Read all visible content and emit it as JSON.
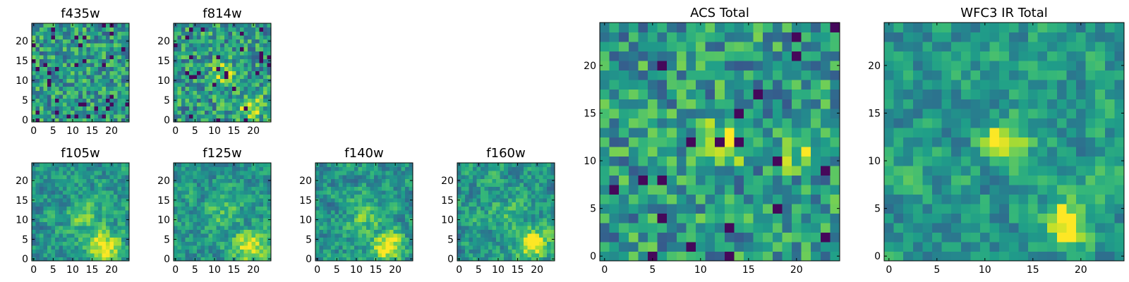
{
  "colormap": {
    "name": "viridis",
    "stops": [
      "#440154",
      "#482878",
      "#3e4989",
      "#31688e",
      "#26828e",
      "#1f9e89",
      "#35b779",
      "#6ece58",
      "#b5de2b",
      "#fde725"
    ]
  },
  "chart_data": [
    {
      "type": "heatmap",
      "title": "f435w",
      "grid_size": 25,
      "xticks": [
        0,
        5,
        10,
        15,
        20
      ],
      "yticks": [
        0,
        5,
        10,
        15,
        20
      ],
      "xlim": [
        -0.5,
        24.5
      ],
      "ylim": [
        -0.5,
        24.5
      ],
      "texture": "noise",
      "seed": 11,
      "blobs": []
    },
    {
      "type": "heatmap",
      "title": "f814w",
      "grid_size": 25,
      "xticks": [
        0,
        5,
        10,
        15,
        20
      ],
      "yticks": [
        0,
        5,
        10,
        15,
        20
      ],
      "xlim": [
        -0.5,
        24.5
      ],
      "ylim": [
        -0.5,
        24.5
      ],
      "texture": "noise",
      "seed": 23,
      "blobs": [
        {
          "x": 12,
          "y": 12,
          "sigma": 2.0,
          "amp": 0.35
        },
        {
          "x": 19,
          "y": 3,
          "sigma": 2.5,
          "amp": 0.3
        }
      ]
    },
    {
      "type": "heatmap",
      "title": "f105w",
      "grid_size": 25,
      "xticks": [
        0,
        5,
        10,
        15,
        20
      ],
      "yticks": [
        0,
        5,
        10,
        15,
        20
      ],
      "xlim": [
        -0.5,
        24.5
      ],
      "ylim": [
        -0.5,
        24.5
      ],
      "texture": "smooth",
      "seed": 37,
      "blobs": [
        {
          "x": 18,
          "y": 3,
          "sigma": 3.0,
          "amp": 0.45
        },
        {
          "x": 13,
          "y": 11,
          "sigma": 3.0,
          "amp": 0.2
        }
      ]
    },
    {
      "type": "heatmap",
      "title": "f125w",
      "grid_size": 25,
      "xticks": [
        0,
        5,
        10,
        15,
        20
      ],
      "yticks": [
        0,
        5,
        10,
        15,
        20
      ],
      "xlim": [
        -0.5,
        24.5
      ],
      "ylim": [
        -0.5,
        24.5
      ],
      "texture": "smooth",
      "seed": 41,
      "blobs": [
        {
          "x": 19,
          "y": 3,
          "sigma": 2.8,
          "amp": 0.45
        },
        {
          "x": 12,
          "y": 12,
          "sigma": 3.0,
          "amp": 0.2
        }
      ]
    },
    {
      "type": "heatmap",
      "title": "f140w",
      "grid_size": 25,
      "xticks": [
        0,
        5,
        10,
        15,
        20
      ],
      "yticks": [
        0,
        5,
        10,
        15,
        20
      ],
      "xlim": [
        -0.5,
        24.5
      ],
      "ylim": [
        -0.5,
        24.5
      ],
      "texture": "smooth",
      "seed": 53,
      "blobs": [
        {
          "x": 18,
          "y": 3,
          "sigma": 2.6,
          "amp": 0.5
        },
        {
          "x": 12,
          "y": 11,
          "sigma": 3.0,
          "amp": 0.2
        }
      ]
    },
    {
      "type": "heatmap",
      "title": "f160w",
      "grid_size": 25,
      "xticks": [
        0,
        5,
        10,
        15,
        20
      ],
      "yticks": [
        0,
        5,
        10,
        15,
        20
      ],
      "xlim": [
        -0.5,
        24.5
      ],
      "ylim": [
        -0.5,
        24.5
      ],
      "texture": "smooth",
      "seed": 61,
      "blobs": [
        {
          "x": 19,
          "y": 4,
          "sigma": 2.6,
          "amp": 0.55
        },
        {
          "x": 12,
          "y": 11,
          "sigma": 3.0,
          "amp": 0.15
        }
      ]
    },
    {
      "type": "heatmap",
      "title": "ACS Total",
      "grid_size": 25,
      "xticks": [
        0,
        5,
        10,
        15,
        20
      ],
      "yticks": [
        0,
        5,
        10,
        15,
        20
      ],
      "xlim": [
        -0.5,
        24.5
      ],
      "ylim": [
        -0.5,
        24.5
      ],
      "texture": "noise",
      "seed": 71,
      "blobs": [
        {
          "x": 12.5,
          "y": 12,
          "sigma": 1.6,
          "amp": 0.45
        },
        {
          "x": 20,
          "y": 11,
          "sigma": 1.4,
          "amp": 0.3
        }
      ]
    },
    {
      "type": "heatmap",
      "title": "WFC3 IR Total",
      "grid_size": 25,
      "xticks": [
        0,
        5,
        10,
        15,
        20
      ],
      "yticks": [
        0,
        5,
        10,
        15,
        20
      ],
      "xlim": [
        -0.5,
        24.5
      ],
      "ylim": [
        -0.5,
        24.5
      ],
      "texture": "smooth",
      "seed": 83,
      "blobs": [
        {
          "x": 18.5,
          "y": 3.5,
          "sigma": 1.8,
          "amp": 0.55
        },
        {
          "x": 12,
          "y": 12,
          "sigma": 1.6,
          "amp": 0.5
        },
        {
          "x": 23,
          "y": 10,
          "sigma": 1.5,
          "amp": 0.2
        }
      ]
    }
  ]
}
